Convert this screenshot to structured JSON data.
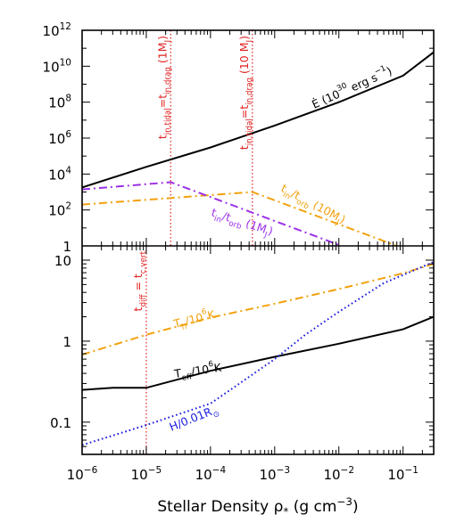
{
  "colors": {
    "black": "#000000",
    "orange": "#f2a20f",
    "purple": "#9b30e8",
    "blue": "#1a1adf",
    "red": "#e02020"
  },
  "chart_data": [
    {
      "type": "line",
      "panel": "top",
      "xscale": "log",
      "yscale": "log",
      "xlim": [
        1e-06,
        0.3
      ],
      "ylim": [
        1,
        1000000000000.0
      ],
      "xticks": [
        "10^-6",
        "10^-5",
        "10^-4",
        "10^-3",
        "10^-2",
        "10^-1"
      ],
      "yticks": [
        "1",
        "10^2",
        "10^4",
        "10^6",
        "10^8",
        "10^10",
        "10^12"
      ],
      "series": [
        {
          "name": "Ė (10^30 erg s^-1)",
          "style": "solid",
          "color": "#000000",
          "x": [
            1e-06,
            1e-05,
            0.0001,
            0.001,
            0.01,
            0.1,
            0.3
          ],
          "y": [
            1800,
            25000,
            300000,
            5000000,
            100000000,
            3000000000,
            60000000000
          ]
        },
        {
          "name": "t_in/t_orb (10M_J)",
          "style": "dash-dot",
          "color": "#f2a20f",
          "x": [
            1e-06,
            0.00045,
            0.08
          ],
          "y": [
            200,
            1000,
            1
          ]
        },
        {
          "name": "t_in/t_orb (1M_J)",
          "style": "dash-dot",
          "color": "#9b30e8",
          "x": [
            1e-06,
            2.4e-05,
            0.011
          ],
          "y": [
            1400,
            3500,
            1
          ]
        }
      ],
      "vlines": [
        {
          "x": 2.4e-05,
          "label_main": "t",
          "label_sub1": "in,tidal",
          "label_mid": "=t",
          "label_sub2": "in,drag",
          "label_tail": " (1M",
          "label_sub3": "J",
          "label_end": ")"
        },
        {
          "x": 0.00045,
          "label_main": "t",
          "label_sub1": "in,tidal",
          "label_mid": "=t",
          "label_sub2": "in,drag",
          "label_tail": " (10 M",
          "label_sub3": "J",
          "label_end": ")"
        }
      ],
      "annotations": {
        "edot": {
          "main": "Ė (10",
          "sup": "30",
          "rest": " erg s",
          "sup2": "−1",
          "end": ")"
        },
        "orange": {
          "a": "t",
          "a_sub": "in",
          "b": "/t",
          "b_sub": "orb",
          "c": " (10M",
          "c_sub": "J",
          "d": ")"
        },
        "purple": {
          "a": "t",
          "a_sub": "in",
          "b": "/t",
          "b_sub": "orb",
          "c": " (1M",
          "c_sub": "J",
          "d": ")"
        }
      }
    },
    {
      "type": "line",
      "panel": "bottom",
      "xscale": "log",
      "yscale": "log",
      "xlim": [
        1e-06,
        0.3
      ],
      "ylim": [
        0.04,
        15
      ],
      "yticks": [
        "0.1",
        "1",
        "10"
      ],
      "xlabel": "Stellar Density ρ",
      "xlabel_sub": "*",
      "xlabel_units": " (g cm",
      "xlabel_sup": "−3",
      "xlabel_end": ")",
      "series": [
        {
          "name": "T_h/10^6K",
          "style": "dash-dot",
          "color": "#f2a20f",
          "x": [
            1e-06,
            1e-05,
            0.0001,
            0.001,
            0.01,
            0.1,
            0.3
          ],
          "y": [
            0.68,
            1.2,
            1.95,
            2.9,
            4.4,
            6.9,
            9.0
          ]
        },
        {
          "name": "T_eff/10^6K",
          "style": "solid",
          "color": "#000000",
          "x": [
            1e-06,
            3e-06,
            1e-05,
            0.0001,
            0.001,
            0.01,
            0.1,
            0.3
          ],
          "y": [
            0.25,
            0.265,
            0.265,
            0.43,
            0.64,
            0.93,
            1.4,
            2.0
          ]
        },
        {
          "name": "H/0.01R_⊙",
          "style": "dotted",
          "color": "#1a1adf",
          "x": [
            1e-06,
            1e-05,
            0.0001,
            0.0003,
            0.001,
            0.003,
            0.01,
            0.05,
            0.3
          ],
          "y": [
            0.052,
            0.092,
            0.17,
            0.31,
            0.6,
            1.2,
            2.3,
            5.2,
            9.5
          ]
        }
      ],
      "vlines": [
        {
          "x": 1e-05,
          "label_a": "t",
          "label_sub1": "diff",
          "label_b": " = t",
          "label_sub2": "c,vert"
        }
      ],
      "annotations": {
        "th": {
          "a": "T",
          "a_sub": "h",
          "b": "/10",
          "b_sup": "6",
          "c": "K"
        },
        "teff": {
          "a": "T",
          "a_sub": "eff",
          "b": "/10",
          "b_sup": "6",
          "c": "K"
        },
        "h": {
          "a": "H/0.01R",
          "a_sub": "⊙"
        }
      }
    }
  ]
}
